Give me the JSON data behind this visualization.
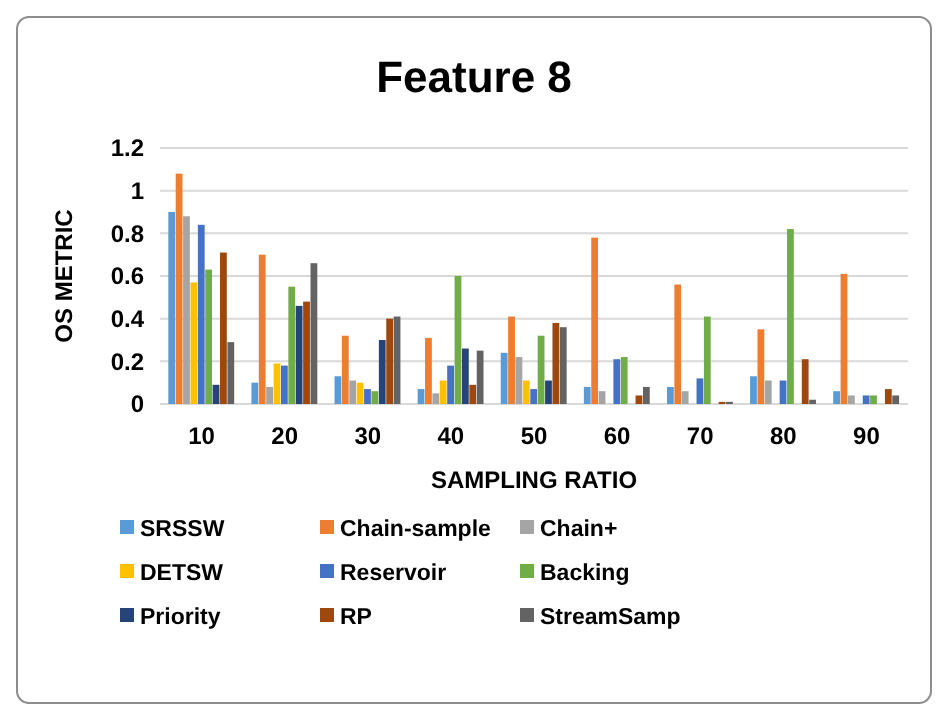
{
  "chart_data": {
    "type": "bar",
    "title": "Feature 8",
    "xlabel": "SAMPLING RATIO",
    "ylabel": "OS METRIC",
    "categories": [
      "10",
      "20",
      "30",
      "40",
      "50",
      "60",
      "70",
      "80",
      "90"
    ],
    "series": [
      {
        "name": "SRSSW",
        "color": "#5b9bd5",
        "values": [
          0.9,
          0.1,
          0.13,
          0.07,
          0.24,
          0.08,
          0.08,
          0.13,
          0.06
        ]
      },
      {
        "name": "Chain-sample",
        "color": "#ed7d31",
        "values": [
          1.08,
          0.7,
          0.32,
          0.31,
          0.41,
          0.78,
          0.56,
          0.35,
          0.61
        ]
      },
      {
        "name": "Chain+",
        "color": "#a5a5a5",
        "values": [
          0.88,
          0.08,
          0.11,
          0.05,
          0.22,
          0.06,
          0.06,
          0.11,
          0.04
        ]
      },
      {
        "name": "DETSW",
        "color": "#ffc000",
        "values": [
          0.57,
          0.19,
          0.1,
          0.11,
          0.11,
          0,
          0,
          0,
          0
        ]
      },
      {
        "name": "Reservoir",
        "color": "#4472c4",
        "values": [
          0.84,
          0.18,
          0.07,
          0.18,
          0.07,
          0.21,
          0.12,
          0.11,
          0.04
        ]
      },
      {
        "name": "Backing",
        "color": "#70ad47",
        "values": [
          0.63,
          0.55,
          0.06,
          0.6,
          0.32,
          0.22,
          0.41,
          0.82,
          0.04
        ]
      },
      {
        "name": "Priority",
        "color": "#264478",
        "values": [
          0.09,
          0.46,
          0.3,
          0.26,
          0.11,
          0,
          0,
          0,
          0
        ]
      },
      {
        "name": "RP",
        "color": "#9e480e",
        "values": [
          0.71,
          0.48,
          0.4,
          0.09,
          0.38,
          0.04,
          0.01,
          0.21,
          0.07
        ]
      },
      {
        "name": "StreamSamp",
        "color": "#636363",
        "values": [
          0.29,
          0.66,
          0.41,
          0.25,
          0.36,
          0.08,
          0.01,
          0.02,
          0.04
        ]
      }
    ],
    "ylim": [
      0,
      1.2
    ],
    "yticks": [
      {
        "value": 0,
        "label": "0"
      },
      {
        "value": 0.2,
        "label": "0.2"
      },
      {
        "value": 0.4,
        "label": "0.4"
      },
      {
        "value": 0.6,
        "label": "0.6"
      },
      {
        "value": 0.8,
        "label": "0.8"
      },
      {
        "value": 1,
        "label": "1"
      },
      {
        "value": 1.2,
        "label": "1.2"
      }
    ],
    "grid": "y",
    "legend": "bottom"
  }
}
